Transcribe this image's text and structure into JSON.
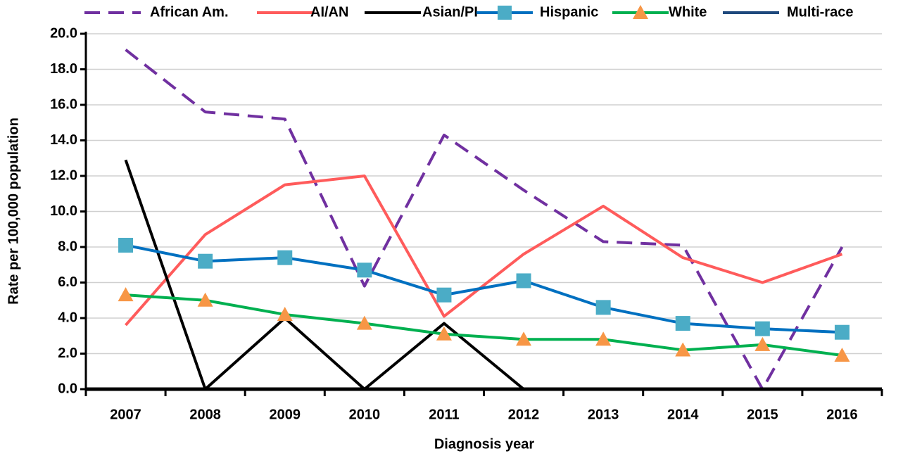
{
  "chart_data": {
    "type": "line",
    "x_label": "Diagnosis year",
    "y_label": "Rate per 100,000 population",
    "categories": [
      "2007",
      "2008",
      "2009",
      "2010",
      "2011",
      "2012",
      "2013",
      "2014",
      "2015",
      "2016"
    ],
    "ylim": [
      0,
      20
    ],
    "yticks": [
      {
        "value": 0,
        "label": "0.0"
      },
      {
        "value": 2,
        "label": "2.0"
      },
      {
        "value": 4,
        "label": "4.0"
      },
      {
        "value": 6,
        "label": "6.0"
      },
      {
        "value": 8,
        "label": "8.0"
      },
      {
        "value": 10,
        "label": "10.0"
      },
      {
        "value": 12,
        "label": "12.0"
      },
      {
        "value": 14,
        "label": "14.0"
      },
      {
        "value": 16,
        "label": "16.0"
      },
      {
        "value": 18,
        "label": "18.0"
      },
      {
        "value": 20,
        "label": "20.0"
      }
    ],
    "grid": true,
    "legend": "top",
    "series": [
      {
        "name": "African Am.",
        "color": "#7030a0",
        "dash": true,
        "values": [
          19.1,
          15.6,
          15.2,
          5.8,
          14.3,
          11.2,
          8.3,
          8.1,
          0,
          8.0
        ]
      },
      {
        "name": "AI/AN",
        "color": "#ff5b5b",
        "values": [
          3.6,
          8.7,
          11.5,
          12.0,
          4.1,
          7.6,
          10.3,
          7.4,
          6.0,
          7.6
        ]
      },
      {
        "name": "Asian/PI",
        "color": "#000000",
        "values": [
          12.9,
          0,
          4.0,
          0,
          3.7,
          0,
          0,
          0,
          0,
          0
        ]
      },
      {
        "name": "Hispanic",
        "color": "#0070c0",
        "marker": "square",
        "marker_color": "#4bacc6",
        "values": [
          8.1,
          7.2,
          7.4,
          6.7,
          5.3,
          6.1,
          4.6,
          3.7,
          3.4,
          3.2
        ]
      },
      {
        "name": "White",
        "color": "#00b050",
        "marker": "triangle",
        "marker_color": "#f79646",
        "values": [
          5.3,
          5.0,
          4.2,
          3.7,
          3.1,
          2.8,
          2.8,
          2.2,
          2.5,
          1.9
        ]
      },
      {
        "name": "Multi-race",
        "color": "#1f497d",
        "values": [
          0,
          0,
          0,
          0,
          0,
          0,
          0,
          0,
          0,
          0
        ]
      }
    ]
  }
}
